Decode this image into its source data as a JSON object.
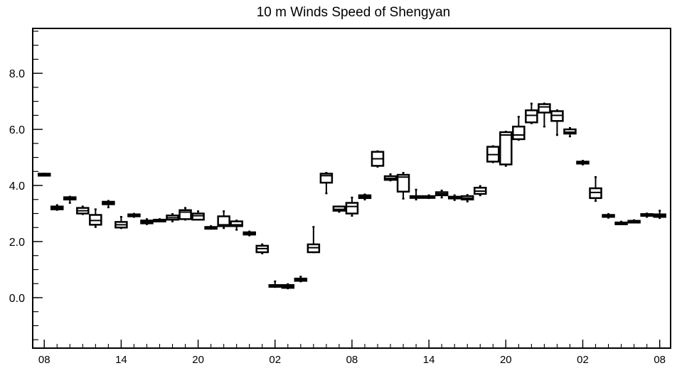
{
  "chart_data": {
    "type": "box",
    "title": "10 m Winds Speed of Shengyan",
    "xlabel": "",
    "ylabel": "",
    "ylim": [
      -1.8,
      9.6
    ],
    "y_ticks": [
      0.0,
      2.0,
      4.0,
      6.0,
      8.0
    ],
    "y_tick_labels": [
      "0.0",
      "2.0",
      "4.0",
      "6.0",
      "8.0"
    ],
    "y_minor_step": 0.5,
    "x_ticks": [
      0,
      6,
      12,
      18,
      24,
      30,
      36,
      42,
      48
    ],
    "x_tick_labels": [
      "08",
      "14",
      "20",
      "02",
      "08",
      "14",
      "20",
      "02",
      "08"
    ],
    "x_range": [
      -0.9,
      48.85
    ],
    "x_unit": "hour",
    "grid": false,
    "series": [
      {
        "x": [
          0,
          1,
          2,
          3,
          4,
          5,
          6,
          7,
          8,
          9,
          10,
          11,
          12,
          13,
          14,
          15,
          16,
          17,
          18,
          19,
          20,
          21,
          22,
          23,
          24,
          25,
          26,
          27,
          28,
          29,
          30,
          31,
          32,
          33,
          34,
          35,
          36,
          37,
          38,
          39,
          40,
          41,
          42,
          43,
          44,
          45,
          46,
          47,
          48
        ],
        "min": [
          4.35,
          3.13,
          3.38,
          2.98,
          2.52,
          3.22,
          2.48,
          2.88,
          2.62,
          2.72,
          2.72,
          2.78,
          2.79,
          2.46,
          2.48,
          2.42,
          2.22,
          1.58,
          0.38,
          0.33,
          0.58,
          1.62,
          3.72,
          3.06,
          2.92,
          3.5,
          4.67,
          4.18,
          3.53,
          3.5,
          3.55,
          3.57,
          3.48,
          3.43,
          3.65,
          4.83,
          4.7,
          5.63,
          6.22,
          6.1,
          5.8,
          5.75,
          4.75,
          3.45,
          2.85,
          2.64,
          2.68,
          2.88,
          2.84
        ],
        "q1": [
          4.35,
          3.15,
          3.5,
          3.0,
          2.6,
          3.33,
          2.5,
          2.9,
          2.65,
          2.75,
          2.78,
          2.8,
          2.78,
          2.48,
          2.55,
          2.55,
          2.25,
          1.62,
          0.4,
          0.35,
          0.6,
          1.62,
          4.1,
          3.1,
          3.0,
          3.55,
          4.7,
          4.2,
          3.78,
          3.6,
          3.58,
          3.65,
          3.55,
          3.5,
          3.7,
          4.85,
          4.75,
          5.65,
          6.25,
          6.6,
          6.3,
          5.85,
          4.78,
          3.55,
          2.88,
          2.66,
          2.7,
          2.92,
          2.88
        ],
        "median": [
          4.37,
          3.2,
          3.53,
          3.1,
          2.75,
          3.38,
          2.6,
          2.95,
          2.7,
          2.75,
          2.85,
          3.05,
          2.92,
          2.5,
          2.6,
          2.6,
          2.28,
          1.75,
          0.42,
          0.4,
          0.65,
          1.78,
          4.35,
          3.15,
          3.25,
          3.6,
          4.95,
          4.25,
          4.3,
          3.6,
          3.6,
          3.7,
          3.57,
          3.55,
          3.8,
          5.1,
          5.8,
          5.8,
          6.5,
          6.8,
          6.5,
          5.9,
          4.8,
          3.75,
          2.9,
          2.66,
          2.72,
          2.95,
          2.92
        ],
        "q3": [
          4.42,
          3.25,
          3.58,
          3.2,
          2.95,
          3.42,
          2.7,
          2.97,
          2.75,
          2.78,
          2.93,
          3.12,
          3.0,
          2.52,
          2.9,
          2.72,
          2.33,
          1.85,
          0.45,
          0.45,
          0.68,
          1.9,
          4.42,
          3.25,
          3.38,
          3.65,
          5.2,
          4.33,
          4.38,
          3.62,
          3.62,
          3.76,
          3.6,
          3.62,
          3.92,
          5.38,
          5.9,
          6.1,
          6.68,
          6.9,
          6.65,
          6.0,
          4.85,
          3.9,
          2.95,
          2.68,
          2.74,
          2.98,
          2.97
        ],
        "max": [
          4.42,
          3.3,
          3.6,
          3.25,
          3.15,
          3.45,
          2.88,
          2.99,
          2.8,
          2.8,
          2.98,
          3.2,
          3.08,
          2.55,
          3.08,
          2.75,
          2.36,
          1.9,
          0.58,
          0.48,
          0.75,
          2.52,
          4.45,
          3.25,
          3.57,
          3.68,
          5.22,
          4.4,
          4.45,
          3.85,
          3.65,
          3.82,
          3.65,
          3.66,
          3.98,
          5.4,
          5.92,
          6.45,
          6.92,
          6.92,
          6.68,
          6.05,
          4.88,
          4.3,
          2.98,
          2.71,
          2.76,
          3.0,
          3.1
        ]
      }
    ]
  }
}
